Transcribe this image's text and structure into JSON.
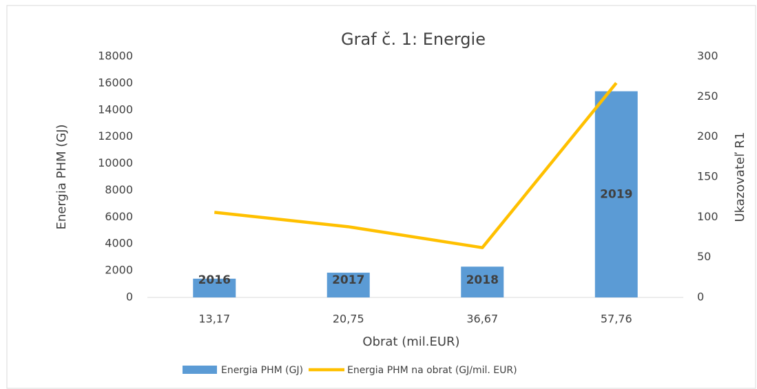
{
  "chart_data": {
    "type": "combo",
    "title": "Graf č. 1: Energie",
    "x_label": "Obrat (mil.EUR)",
    "y_label": "Energia PHM (GJ)",
    "y2_label": "Ukazovateľ R1",
    "categories": [
      "13,17",
      "20,75",
      "36,67",
      "57,76"
    ],
    "series": [
      {
        "name": "Energia PHM (GJ)",
        "type": "bar",
        "color": "#5b9bd5",
        "values": [
          1400,
          1850,
          2300,
          15400
        ],
        "bar_labels": [
          "2016",
          "2017",
          "2018",
          "2019"
        ]
      },
      {
        "name": "Energia PHM na obrat (GJ/mil. EUR)",
        "type": "line",
        "axis": "y2",
        "color": "#ffc000",
        "values": [
          106,
          88,
          62,
          267
        ]
      }
    ],
    "ylim": [
      0,
      18000
    ],
    "yticks": [
      0,
      2000,
      4000,
      6000,
      8000,
      10000,
      12000,
      14000,
      16000,
      18000
    ],
    "y2lim": [
      0,
      300
    ],
    "y2ticks": [
      0,
      50,
      100,
      150,
      200,
      250,
      300
    ],
    "grid": false,
    "legend": "bottom"
  }
}
